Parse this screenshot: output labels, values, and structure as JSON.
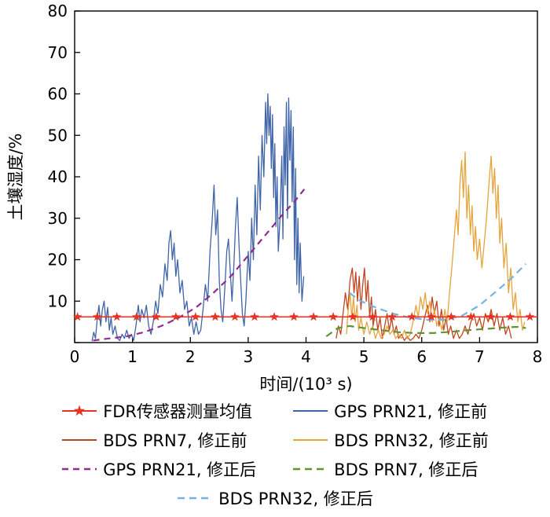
{
  "chart_data": {
    "type": "line",
    "title": "",
    "xlabel": "时间/(10³ s)",
    "ylabel": "土壤湿度/%",
    "xlim": [
      0,
      8
    ],
    "ylim": [
      0,
      80
    ],
    "x_ticks": [
      0,
      1,
      2,
      3,
      4,
      5,
      6,
      7,
      8
    ],
    "y_ticks": [
      0,
      10,
      20,
      30,
      40,
      50,
      60,
      70,
      80
    ],
    "grid": false,
    "legend_position": "bottom",
    "draw_order": [
      1,
      2,
      3,
      4,
      5,
      6,
      0
    ],
    "series": [
      {
        "name": "FDR传感器测量均值",
        "color": "#e43425",
        "width": 1.6,
        "marker": "star",
        "marker_y": 6.2,
        "marker_x": [
          0.05,
          0.39,
          0.73,
          1.07,
          1.41,
          1.75,
          2.09,
          2.43,
          2.77,
          3.11,
          3.45,
          3.79,
          4.13,
          4.47,
          4.81,
          5.15,
          5.49,
          5.83,
          6.17,
          6.51,
          6.85,
          7.19,
          7.53,
          7.87
        ],
        "points": [
          [
            0,
            6.2
          ],
          [
            8,
            6.2
          ]
        ]
      },
      {
        "name": "GPS PRN21, 修正前",
        "color": "#4064a8",
        "width": 1.3,
        "points": [
          [
            0.3,
            0.3
          ],
          [
            0.33,
            2.5
          ],
          [
            0.36,
            1
          ],
          [
            0.39,
            5.5
          ],
          [
            0.42,
            9
          ],
          [
            0.45,
            4
          ],
          [
            0.48,
            8
          ],
          [
            0.51,
            10
          ],
          [
            0.54,
            5
          ],
          [
            0.57,
            8.5
          ],
          [
            0.6,
            3
          ],
          [
            0.63,
            6
          ],
          [
            0.66,
            2
          ],
          [
            0.7,
            4
          ],
          [
            0.74,
            1
          ],
          [
            0.78,
            0.5
          ],
          [
            0.82,
            2
          ],
          [
            0.86,
            1
          ],
          [
            0.9,
            3
          ],
          [
            0.94,
            1
          ],
          [
            0.98,
            2
          ],
          [
            1.02,
            0.5
          ],
          [
            1.06,
            4
          ],
          [
            1.1,
            9
          ],
          [
            1.13,
            5
          ],
          [
            1.16,
            8
          ],
          [
            1.2,
            6
          ],
          [
            1.24,
            9
          ],
          [
            1.28,
            4
          ],
          [
            1.32,
            2
          ],
          [
            1.36,
            5
          ],
          [
            1.4,
            10
          ],
          [
            1.44,
            7
          ],
          [
            1.48,
            14
          ],
          [
            1.52,
            11
          ],
          [
            1.56,
            19
          ],
          [
            1.6,
            15
          ],
          [
            1.63,
            24
          ],
          [
            1.66,
            27
          ],
          [
            1.69,
            20
          ],
          [
            1.72,
            24
          ],
          [
            1.75,
            16
          ],
          [
            1.78,
            20
          ],
          [
            1.82,
            12
          ],
          [
            1.86,
            15
          ],
          [
            1.9,
            8
          ],
          [
            1.94,
            10
          ],
          [
            1.98,
            4
          ],
          [
            2.02,
            6
          ],
          [
            2.06,
            2
          ],
          [
            2.1,
            5
          ],
          [
            2.14,
            2
          ],
          [
            2.18,
            3
          ],
          [
            2.22,
            8
          ],
          [
            2.26,
            14
          ],
          [
            2.3,
            10
          ],
          [
            2.34,
            22
          ],
          [
            2.38,
            30
          ],
          [
            2.41,
            38
          ],
          [
            2.44,
            26
          ],
          [
            2.47,
            32
          ],
          [
            2.5,
            15
          ],
          [
            2.53,
            8
          ],
          [
            2.56,
            5
          ],
          [
            2.6,
            14
          ],
          [
            2.63,
            22
          ],
          [
            2.66,
            25
          ],
          [
            2.69,
            17
          ],
          [
            2.72,
            10
          ],
          [
            2.75,
            18
          ],
          [
            2.78,
            28
          ],
          [
            2.81,
            35
          ],
          [
            2.84,
            24
          ],
          [
            2.87,
            15
          ],
          [
            2.9,
            7
          ],
          [
            2.93,
            4
          ],
          [
            2.96,
            10
          ],
          [
            3.0,
            22
          ],
          [
            3.03,
            15
          ],
          [
            3.06,
            30
          ],
          [
            3.09,
            20
          ],
          [
            3.12,
            38
          ],
          [
            3.15,
            26
          ],
          [
            3.18,
            45
          ],
          [
            3.21,
            32
          ],
          [
            3.24,
            50
          ],
          [
            3.27,
            40
          ],
          [
            3.3,
            58
          ],
          [
            3.32,
            48
          ],
          [
            3.34,
            60
          ],
          [
            3.36,
            50
          ],
          [
            3.38,
            57
          ],
          [
            3.4,
            42
          ],
          [
            3.42,
            55
          ],
          [
            3.44,
            35
          ],
          [
            3.46,
            48
          ],
          [
            3.48,
            28
          ],
          [
            3.5,
            40
          ],
          [
            3.52,
            22
          ],
          [
            3.55,
            30
          ],
          [
            3.58,
            45
          ],
          [
            3.6,
            25
          ],
          [
            3.62,
            52
          ],
          [
            3.64,
            38
          ],
          [
            3.66,
            58
          ],
          [
            3.68,
            30
          ],
          [
            3.7,
            59
          ],
          [
            3.72,
            44
          ],
          [
            3.74,
            56
          ],
          [
            3.76,
            34
          ],
          [
            3.78,
            52
          ],
          [
            3.8,
            20
          ],
          [
            3.82,
            42
          ],
          [
            3.84,
            14
          ],
          [
            3.86,
            30
          ],
          [
            3.88,
            12
          ],
          [
            3.9,
            24
          ],
          [
            3.93,
            10
          ],
          [
            3.96,
            16
          ]
        ]
      },
      {
        "name": "BDS PRN7, 修正前",
        "color": "#c0451f",
        "width": 1.3,
        "points": [
          [
            4.52,
            1
          ],
          [
            4.56,
            4
          ],
          [
            4.6,
            2
          ],
          [
            4.64,
            7
          ],
          [
            4.68,
            12
          ],
          [
            4.72,
            8
          ],
          [
            4.76,
            15
          ],
          [
            4.8,
            18
          ],
          [
            4.83,
            12
          ],
          [
            4.86,
            17
          ],
          [
            4.89,
            10
          ],
          [
            4.92,
            16
          ],
          [
            4.95,
            8
          ],
          [
            4.98,
            14
          ],
          [
            5.01,
            18
          ],
          [
            5.04,
            10
          ],
          [
            5.07,
            15
          ],
          [
            5.1,
            6
          ],
          [
            5.13,
            11
          ],
          [
            5.16,
            4
          ],
          [
            5.2,
            8
          ],
          [
            5.24,
            3
          ],
          [
            5.28,
            6
          ],
          [
            5.32,
            1
          ],
          [
            5.36,
            4
          ],
          [
            5.4,
            7
          ],
          [
            5.44,
            3
          ],
          [
            5.48,
            6
          ],
          [
            5.52,
            2
          ],
          [
            5.56,
            4
          ],
          [
            5.6,
            1
          ],
          [
            5.65,
            2
          ],
          [
            5.7,
            0.5
          ],
          [
            5.75,
            1.5
          ],
          [
            5.8,
            0.5
          ],
          [
            5.85,
            1
          ],
          [
            5.9,
            2
          ],
          [
            5.95,
            1
          ],
          [
            6.0,
            3
          ],
          [
            6.05,
            6
          ],
          [
            6.1,
            9
          ],
          [
            6.14,
            5
          ],
          [
            6.18,
            11
          ],
          [
            6.22,
            7
          ],
          [
            6.26,
            10
          ],
          [
            6.3,
            4
          ],
          [
            6.34,
            8
          ],
          [
            6.38,
            3
          ],
          [
            6.42,
            6
          ],
          [
            6.46,
            2
          ],
          [
            6.5,
            4
          ],
          [
            6.55,
            1
          ],
          [
            6.6,
            3
          ],
          [
            6.65,
            1
          ],
          [
            6.7,
            2
          ],
          [
            6.75,
            4
          ],
          [
            6.8,
            2
          ],
          [
            6.85,
            5
          ],
          [
            6.9,
            7
          ],
          [
            6.95,
            4
          ],
          [
            7.0,
            6
          ],
          [
            7.05,
            3
          ],
          [
            7.1,
            7
          ],
          [
            7.15,
            5
          ],
          [
            7.2,
            8
          ],
          [
            7.25,
            4
          ],
          [
            7.3,
            7
          ],
          [
            7.35,
            3
          ],
          [
            7.4,
            6
          ],
          [
            7.45,
            2
          ],
          [
            7.5,
            4
          ],
          [
            7.55,
            1
          ]
        ]
      },
      {
        "name": "BDS PRN32, 修正前",
        "color": "#e6a43c",
        "width": 1.3,
        "points": [
          [
            4.7,
            2
          ],
          [
            4.73,
            8
          ],
          [
            4.76,
            12
          ],
          [
            4.79,
            6
          ],
          [
            4.82,
            11
          ],
          [
            4.85,
            5
          ],
          [
            4.88,
            9
          ],
          [
            4.91,
            3
          ],
          [
            4.95,
            6
          ],
          [
            5.0,
            2
          ],
          [
            5.05,
            5
          ],
          [
            5.1,
            2
          ],
          [
            5.15,
            4
          ],
          [
            5.2,
            1
          ],
          [
            5.25,
            3
          ],
          [
            5.3,
            1
          ],
          [
            5.35,
            2
          ],
          [
            5.4,
            4
          ],
          [
            5.45,
            2
          ],
          [
            5.5,
            3
          ],
          [
            5.55,
            1
          ],
          [
            5.6,
            2
          ],
          [
            5.65,
            1
          ],
          [
            5.7,
            3
          ],
          [
            5.75,
            1
          ],
          [
            5.8,
            2
          ],
          [
            5.85,
            5
          ],
          [
            5.9,
            9
          ],
          [
            5.94,
            6
          ],
          [
            5.98,
            11
          ],
          [
            6.02,
            8
          ],
          [
            6.06,
            12
          ],
          [
            6.1,
            7
          ],
          [
            6.14,
            10
          ],
          [
            6.18,
            5
          ],
          [
            6.22,
            8
          ],
          [
            6.26,
            4
          ],
          [
            6.3,
            6
          ],
          [
            6.35,
            3
          ],
          [
            6.4,
            8
          ],
          [
            6.44,
            5
          ],
          [
            6.48,
            12
          ],
          [
            6.52,
            18
          ],
          [
            6.56,
            25
          ],
          [
            6.6,
            32
          ],
          [
            6.63,
            26
          ],
          [
            6.66,
            38
          ],
          [
            6.69,
            44
          ],
          [
            6.72,
            35
          ],
          [
            6.75,
            46
          ],
          [
            6.78,
            30
          ],
          [
            6.81,
            38
          ],
          [
            6.84,
            26
          ],
          [
            6.87,
            33
          ],
          [
            6.9,
            22
          ],
          [
            6.93,
            28
          ],
          [
            6.96,
            20
          ],
          [
            7.0,
            25
          ],
          [
            7.04,
            18
          ],
          [
            7.08,
            24
          ],
          [
            7.12,
            30
          ],
          [
            7.16,
            38
          ],
          [
            7.2,
            45
          ],
          [
            7.23,
            36
          ],
          [
            7.26,
            42
          ],
          [
            7.29,
            30
          ],
          [
            7.32,
            38
          ],
          [
            7.35,
            24
          ],
          [
            7.38,
            30
          ],
          [
            7.42,
            18
          ],
          [
            7.46,
            24
          ],
          [
            7.5,
            12
          ],
          [
            7.54,
            18
          ],
          [
            7.58,
            8
          ],
          [
            7.62,
            12
          ],
          [
            7.66,
            5
          ],
          [
            7.7,
            8
          ],
          [
            7.74,
            3
          ],
          [
            7.78,
            5
          ]
        ]
      },
      {
        "name": "GPS PRN21, 修正后",
        "color": "#8e2d8e",
        "width": 2.2,
        "dash": "8 6",
        "points": [
          [
            0.32,
            0.5
          ],
          [
            0.6,
            1
          ],
          [
            0.9,
            1.5
          ],
          [
            1.2,
            2.5
          ],
          [
            1.5,
            4
          ],
          [
            1.8,
            6
          ],
          [
            2.1,
            8.5
          ],
          [
            2.4,
            12
          ],
          [
            2.7,
            16
          ],
          [
            3.0,
            21
          ],
          [
            3.3,
            26
          ],
          [
            3.6,
            31
          ],
          [
            3.8,
            34
          ],
          [
            3.97,
            37
          ]
        ]
      },
      {
        "name": "BDS PRN7, 修正后",
        "color": "#5f9432",
        "width": 2.2,
        "dash": "9 6",
        "points": [
          [
            4.35,
            1.5
          ],
          [
            4.55,
            3.5
          ],
          [
            4.75,
            4
          ],
          [
            5.0,
            3.5
          ],
          [
            5.3,
            3
          ],
          [
            5.6,
            2.5
          ],
          [
            5.9,
            2.3
          ],
          [
            6.2,
            2.3
          ],
          [
            6.5,
            2.6
          ],
          [
            6.8,
            3
          ],
          [
            7.1,
            3.3
          ],
          [
            7.4,
            3.6
          ],
          [
            7.65,
            3.8
          ],
          [
            7.8,
            3.5
          ]
        ]
      },
      {
        "name": "BDS PRN32, 修正后",
        "color": "#74b4e0",
        "width": 2.2,
        "dash": "9 6",
        "points": [
          [
            4.75,
            12
          ],
          [
            4.95,
            10
          ],
          [
            5.2,
            8.5
          ],
          [
            5.5,
            7
          ],
          [
            5.8,
            6
          ],
          [
            6.1,
            5.5
          ],
          [
            6.4,
            5.5
          ],
          [
            6.7,
            6.5
          ],
          [
            7.0,
            9
          ],
          [
            7.3,
            12.5
          ],
          [
            7.55,
            15.5
          ],
          [
            7.8,
            19
          ]
        ]
      }
    ]
  }
}
